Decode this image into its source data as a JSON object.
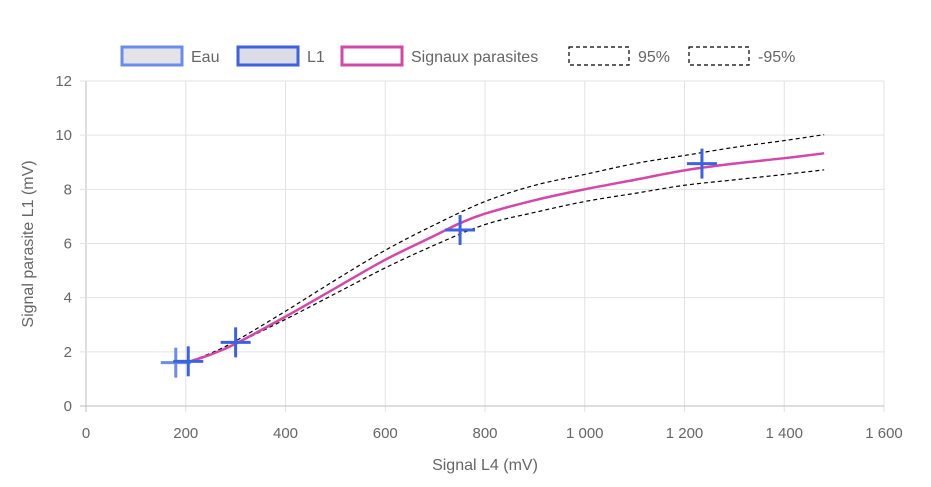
{
  "chart_data": {
    "type": "line",
    "xlabel": "Signal L4 (mV)",
    "ylabel": "Signal parasite L1 (mV)",
    "xlim": [
      0,
      1600
    ],
    "ylim": [
      0,
      12
    ],
    "x_ticks": [
      0,
      200,
      400,
      600,
      800,
      1000,
      1200,
      1400,
      1600
    ],
    "x_tick_labels": [
      "0",
      "200",
      "400",
      "600",
      "800",
      "1 000",
      "1 200",
      "1 400",
      "1 600"
    ],
    "y_ticks": [
      0,
      2,
      4,
      6,
      8,
      10,
      12
    ],
    "y_tick_labels": [
      "0",
      "2",
      "4",
      "6",
      "8",
      "10",
      "12"
    ],
    "grid": true,
    "legend_position": "top",
    "series": [
      {
        "name": "Eau",
        "kind": "scatter",
        "marker": "cross",
        "color": "#6b8ce8",
        "fill": "#e3e3e8",
        "points": [
          [
            180,
            1.6
          ]
        ]
      },
      {
        "name": "L1",
        "kind": "scatter",
        "marker": "cross",
        "color": "#3d62e0",
        "fill": "#dcdce8",
        "points": [
          [
            205,
            1.65
          ],
          [
            300,
            2.35
          ],
          [
            750,
            6.5
          ],
          [
            1235,
            8.95
          ]
        ]
      },
      {
        "name": "Signaux parasites",
        "kind": "line",
        "style": "solid",
        "color": "#d447a8",
        "points": [
          [
            200,
            1.6
          ],
          [
            250,
            1.9
          ],
          [
            300,
            2.3
          ],
          [
            400,
            3.3
          ],
          [
            500,
            4.35
          ],
          [
            600,
            5.4
          ],
          [
            700,
            6.3
          ],
          [
            750,
            6.75
          ],
          [
            800,
            7.1
          ],
          [
            900,
            7.6
          ],
          [
            1000,
            8.0
          ],
          [
            1100,
            8.35
          ],
          [
            1200,
            8.7
          ],
          [
            1300,
            8.95
          ],
          [
            1400,
            9.15
          ],
          [
            1480,
            9.33
          ]
        ]
      },
      {
        "name": "95%",
        "kind": "line",
        "style": "dashed",
        "color": "#000000",
        "points": [
          [
            200,
            1.6
          ],
          [
            250,
            1.95
          ],
          [
            300,
            2.4
          ],
          [
            400,
            3.5
          ],
          [
            500,
            4.65
          ],
          [
            600,
            5.75
          ],
          [
            700,
            6.7
          ],
          [
            800,
            7.55
          ],
          [
            900,
            8.15
          ],
          [
            1000,
            8.55
          ],
          [
            1100,
            8.95
          ],
          [
            1200,
            9.25
          ],
          [
            1300,
            9.55
          ],
          [
            1400,
            9.8
          ],
          [
            1480,
            10.02
          ]
        ]
      },
      {
        "name": "-95%",
        "kind": "line",
        "style": "dashed",
        "color": "#000000",
        "points": [
          [
            200,
            1.6
          ],
          [
            250,
            1.9
          ],
          [
            300,
            2.3
          ],
          [
            400,
            3.2
          ],
          [
            500,
            4.15
          ],
          [
            600,
            5.1
          ],
          [
            700,
            5.95
          ],
          [
            800,
            6.7
          ],
          [
            900,
            7.15
          ],
          [
            1000,
            7.55
          ],
          [
            1100,
            7.85
          ],
          [
            1200,
            8.15
          ],
          [
            1300,
            8.35
          ],
          [
            1400,
            8.55
          ],
          [
            1480,
            8.72
          ]
        ]
      }
    ]
  }
}
